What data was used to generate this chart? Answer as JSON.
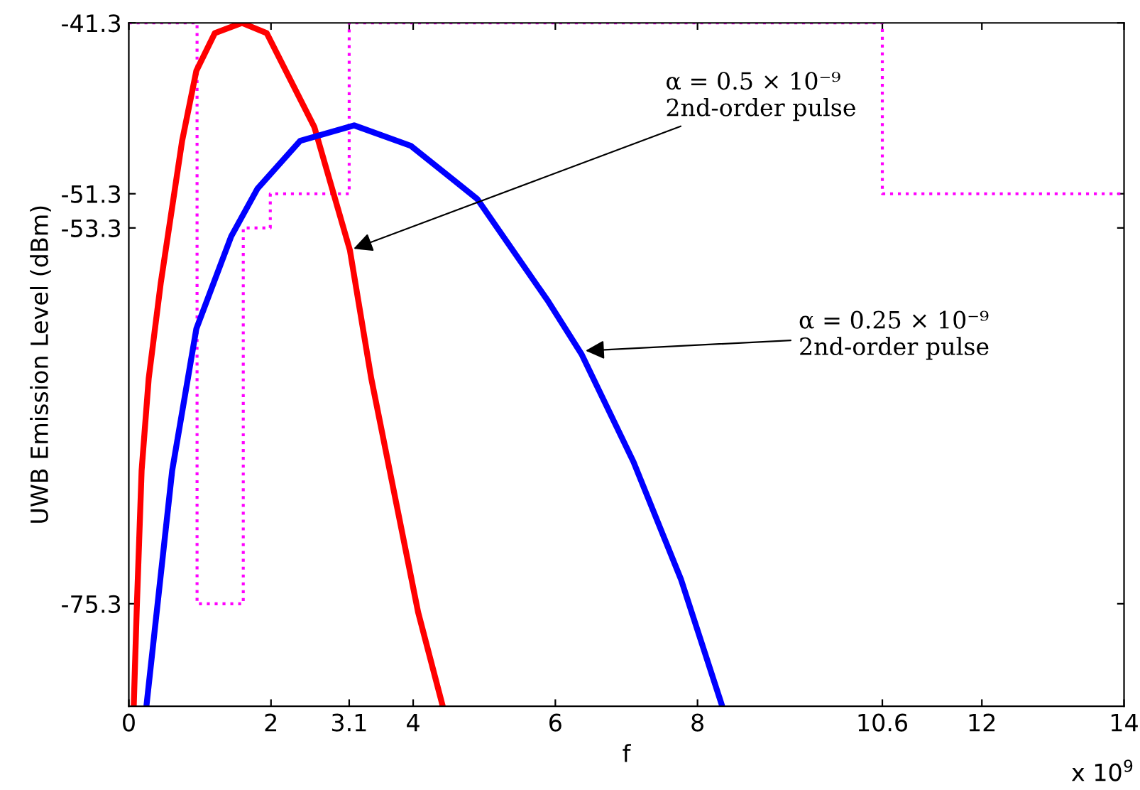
{
  "chart_data": {
    "type": "line",
    "xlabel": "f",
    "ylabel": "UWB Emission Level (dBm)",
    "xlim": [
      0,
      14
    ],
    "xticks": [
      0,
      2,
      3.1,
      4,
      6,
      8,
      10.6,
      12,
      14
    ],
    "ylim": [
      -81.3,
      -41.3
    ],
    "yticks": [
      -75.3,
      -53.3,
      -51.3,
      -41.3
    ],
    "grid": false,
    "legend": false,
    "marker": "none",
    "series": [
      {
        "type": "step",
        "line_style": "dotted",
        "color": "#ff00ff",
        "x": [
          0,
          0.96,
          1.61,
          1.99,
          3.1,
          10.6,
          14
        ],
        "values": [
          -41.3,
          -75.3,
          -53.3,
          -51.3,
          -41.3,
          -51.3,
          -51.3
        ]
      },
      {
        "line_style": "solid",
        "color": "#ff0000",
        "x": [
          0.07,
          0.11,
          0.18,
          0.28,
          0.45,
          0.75,
          0.95,
          1.21,
          1.59,
          1.94,
          2.61,
          3.11,
          3.41,
          3.67,
          4.07,
          4.41
        ],
        "values": [
          -81.2,
          -75.8,
          -67.5,
          -62.1,
          -56.5,
          -48.2,
          -44.1,
          -41.9,
          -41.3,
          -41.9,
          -47.4,
          -54.6,
          -62.1,
          -67.5,
          -75.8,
          -81.2
        ]
      },
      {
        "line_style": "solid",
        "color": "#0000ff",
        "x": [
          0.25,
          0.61,
          0.95,
          1.44,
          1.81,
          2.41,
          3.17,
          3.97,
          4.9,
          5.9,
          6.37,
          7.1,
          7.77,
          8.34
        ],
        "values": [
          -81.2,
          -67.5,
          -59.2,
          -53.8,
          -51.0,
          -48.2,
          -47.3,
          -48.5,
          -51.6,
          -57.6,
          -60.7,
          -67.0,
          -73.9,
          -81.2
        ]
      }
    ],
    "annotations": [
      {
        "text": "α = 0.5 × 10⁻⁹\n2nd-order pulse",
        "x": 3.11,
        "y": -54.6
      },
      {
        "text": "α = 0.25 × 10⁻⁹\n2nd-order pulse",
        "x": 6.37,
        "y": -60.5
      },
      "x 10$^{9}$"
    ]
  }
}
